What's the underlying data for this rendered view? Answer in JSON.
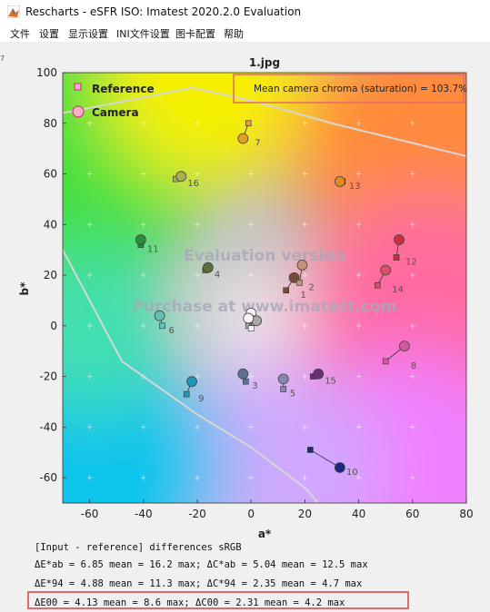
{
  "window": {
    "title": "Rescharts - eSFR ISO:  Imatest 2020.2.0  Evaluation",
    "menu": [
      "文件",
      "设置",
      "显示设置",
      "INI文件设置",
      "图卡配置",
      "帮助"
    ]
  },
  "side_mark": "7",
  "chart_data": {
    "type": "scatter",
    "title": "1.jpg",
    "xlabel": "a*",
    "ylabel": "b*",
    "xlim": [
      -70,
      80
    ],
    "ylim": [
      -70,
      100
    ],
    "xticks": [
      -60,
      -40,
      -20,
      0,
      20,
      40,
      60,
      80
    ],
    "yticks": [
      -60,
      -40,
      -20,
      0,
      20,
      40,
      60,
      80,
      100
    ],
    "grid": "plus markers",
    "legend": {
      "placement": "top-left",
      "entries": [
        "Reference",
        "Camera"
      ]
    },
    "annotation": "Mean camera chroma (saturation) = 103.7%",
    "watermarks": [
      "Evaluation version",
      "Purchase at www.imatest.com"
    ],
    "gamut_boundary": [
      [
        -70,
        84
      ],
      [
        -22,
        94
      ],
      [
        0,
        89
      ],
      [
        30,
        80
      ],
      [
        80,
        67
      ]
    ],
    "gamut_boundary_lower": [
      [
        -70,
        30
      ],
      [
        -48,
        -14
      ],
      [
        -20,
        -35
      ],
      [
        0,
        -48
      ],
      [
        20,
        -64
      ],
      [
        25,
        -70
      ]
    ],
    "points": [
      {
        "label": "1",
        "ref": [
          13,
          14
        ],
        "cam": [
          16,
          19
        ],
        "color": "#7a4a35"
      },
      {
        "label": "2",
        "ref": [
          18,
          17
        ],
        "cam": [
          19,
          24
        ],
        "color": "#c69078"
      },
      {
        "label": "3",
        "ref": [
          -2,
          -22
        ],
        "cam": [
          -3,
          -19
        ],
        "color": "#5e7392"
      },
      {
        "label": "4",
        "ref": [
          -17,
          22
        ],
        "cam": [
          -16,
          23
        ],
        "color": "#5a7040"
      },
      {
        "label": "5",
        "ref": [
          12,
          -25
        ],
        "cam": [
          12,
          -21
        ],
        "color": "#8a84b2"
      },
      {
        "label": "6",
        "ref": [
          -33,
          0
        ],
        "cam": [
          -34,
          4
        ],
        "color": "#66c0b5"
      },
      {
        "label": "7",
        "ref": [
          -1,
          80
        ],
        "cam": [
          -3,
          74
        ],
        "color": "#e0a020"
      },
      {
        "label": "8",
        "ref": [
          50,
          -14
        ],
        "cam": [
          57,
          -8
        ],
        "color": "#d25a9c"
      },
      {
        "label": "9",
        "ref": [
          -24,
          -27
        ],
        "cam": [
          -22,
          -22
        ],
        "color": "#2496b8"
      },
      {
        "label": "10",
        "ref": [
          22,
          -49
        ],
        "cam": [
          33,
          -56
        ],
        "color": "#1a2a80"
      },
      {
        "label": "11",
        "ref": [
          -41,
          32
        ],
        "cam": [
          -41,
          34
        ],
        "color": "#2f8a40"
      },
      {
        "label": "12",
        "ref": [
          54,
          27
        ],
        "cam": [
          55,
          34
        ],
        "color": "#c83040"
      },
      {
        "label": "13",
        "ref": [
          34,
          57
        ],
        "cam": [
          33,
          57
        ],
        "color": "#e08a20"
      },
      {
        "label": "14",
        "ref": [
          47,
          16
        ],
        "cam": [
          50,
          22
        ],
        "color": "#d8506a"
      },
      {
        "label": "15",
        "ref": [
          23,
          -20
        ],
        "cam": [
          25,
          -19
        ],
        "color": "#6a3070"
      },
      {
        "label": "16",
        "ref": [
          -28,
          58
        ],
        "cam": [
          -26,
          59
        ],
        "color": "#a8b050"
      },
      {
        "label": "",
        "ref": [
          0,
          4
        ],
        "cam": [
          0,
          5
        ],
        "color": "#f4f4f4"
      },
      {
        "label": "",
        "ref": [
          0,
          1
        ],
        "cam": [
          1,
          2
        ],
        "color": "#d8d8d8"
      },
      {
        "label": "",
        "ref": [
          -1,
          0
        ],
        "cam": [
          2,
          2
        ],
        "color": "#a8a8a8"
      },
      {
        "label": "",
        "ref": [
          0,
          -1
        ],
        "cam": [
          -1,
          3
        ],
        "color": "#fafafa"
      }
    ]
  },
  "stats": {
    "header": "[Input - reference] differences   sRGB",
    "lines": [
      "ΔE*ab =  6.85 mean = 16.2 max; ΔC*ab =  5.04 mean = 12.5 max",
      "ΔE*94 =  4.88 mean = 11.3 max; ΔC*94 =  2.35 mean =  4.7 max",
      "ΔE00  =  4.13 mean =  8.6 max; ΔC00  =  2.31 mean =  4.2 max"
    ]
  },
  "colors": {
    "highlight_box": "#e36a6a",
    "boundary": "#d6d6d6"
  }
}
